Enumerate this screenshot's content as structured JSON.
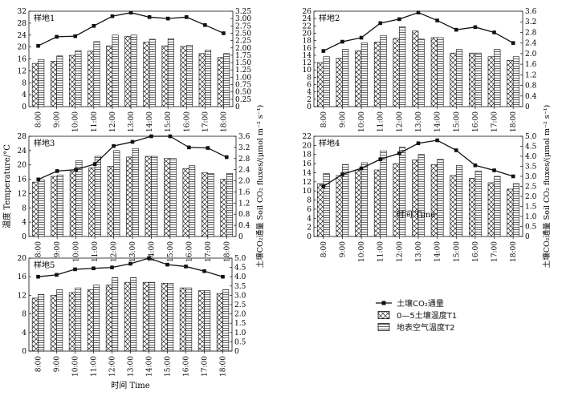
{
  "chart_data": [
    {
      "type": "bar",
      "panel_label": "样地1",
      "categories": [
        "8:00",
        "9:00",
        "10:00",
        "11:00",
        "12:00",
        "13:00",
        "14:00",
        "15:00",
        "16:00",
        "17:00",
        "18:00"
      ],
      "ylim_left": [
        0,
        32
      ],
      "yticks_left": [
        "0",
        "4",
        "8",
        "12",
        "16",
        "20",
        "24",
        "28",
        "32"
      ],
      "ylim_right": [
        0,
        3.25
      ],
      "yticks_right": [
        "0",
        "0.25",
        "0.50",
        "0.75",
        "1.00",
        "1.25",
        "1.50",
        "1.75",
        "2.00",
        "2.25",
        "2.50",
        "2.75",
        "3.00",
        "3.25"
      ],
      "series": [
        {
          "name": "0—5土壤温度T1",
          "axis": "left",
          "values": [
            14.5,
            15.2,
            17.2,
            18.6,
            20.4,
            23.6,
            21.6,
            20.4,
            20.2,
            17.8,
            16.5
          ]
        },
        {
          "name": "地表空气温度T2",
          "axis": "left",
          "values": [
            15.8,
            17.0,
            18.8,
            21.8,
            24.0,
            24.0,
            22.6,
            22.8,
            20.6,
            19.0,
            17.8
          ]
        },
        {
          "name": "土壤CO₂通量",
          "axis": "right",
          "values": [
            2.07,
            2.38,
            2.4,
            2.75,
            3.08,
            3.2,
            3.05,
            3.0,
            3.05,
            2.78,
            2.5
          ]
        }
      ]
    },
    {
      "type": "bar",
      "panel_label": "样地2",
      "categories": [
        "8:00",
        "9:00",
        "10:00",
        "11:00",
        "12:00",
        "13:00",
        "14:00",
        "15:00",
        "16:00",
        "17:00",
        "18:00"
      ],
      "ylim_left": [
        0,
        26
      ],
      "yticks_left": [
        "0",
        "2",
        "4",
        "6",
        "8",
        "10",
        "12",
        "14",
        "16",
        "18",
        "20",
        "22",
        "24",
        "26"
      ],
      "ylim_right": [
        0,
        3.6
      ],
      "yticks_right": [
        "0",
        "0.4",
        "0.8",
        "1.2",
        "1.6",
        "2.0",
        "2.4",
        "2.8",
        "3.2",
        "3.6"
      ],
      "series": [
        {
          "name": "0—5土壤温度T1",
          "axis": "left",
          "values": [
            12.0,
            13.2,
            15.2,
            17.6,
            18.6,
            20.6,
            18.8,
            14.6,
            14.6,
            13.6,
            12.6
          ]
        },
        {
          "name": "地表空气温度T2",
          "axis": "left",
          "values": [
            13.6,
            15.6,
            17.4,
            19.4,
            21.8,
            18.4,
            18.8,
            15.6,
            14.6,
            15.6,
            13.6
          ]
        },
        {
          "name": "土壤CO₂通量",
          "axis": "right",
          "values": [
            2.1,
            2.45,
            2.6,
            3.15,
            3.3,
            3.55,
            3.25,
            2.9,
            3.0,
            2.8,
            2.4
          ]
        }
      ]
    },
    {
      "type": "bar",
      "panel_label": "样地3",
      "categories": [
        "8:00",
        "9:00",
        "10:00",
        "11:00",
        "12:00",
        "13:00",
        "14:00",
        "15:00",
        "16:00",
        "17:00",
        "18:00"
      ],
      "ylim_left": [
        0,
        28
      ],
      "yticks_left": [
        "0",
        "4",
        "8",
        "12",
        "16",
        "20",
        "24",
        "28"
      ],
      "ylim_right": [
        0,
        3.6
      ],
      "yticks_right": [
        "0",
        "0.4",
        "0.8",
        "1.2",
        "1.6",
        "2.0",
        "2.4",
        "2.8",
        "3.2",
        "3.6"
      ],
      "ylabel_left": "温度 Temperature/°C",
      "ylabel_right": "土壤CO₂通量 Soil CO₂ fluxes/(μmol m⁻² s⁻¹)",
      "series": [
        {
          "name": "0—5土壤温度T1",
          "axis": "left",
          "values": [
            15.2,
            16.8,
            18.2,
            19.2,
            19.6,
            22.2,
            22.4,
            21.8,
            19.0,
            17.8,
            16.0
          ]
        },
        {
          "name": "地表空气温度T2",
          "axis": "left",
          "values": [
            15.8,
            17.2,
            21.2,
            22.4,
            24.0,
            24.6,
            22.4,
            21.8,
            19.8,
            17.6,
            17.6
          ]
        },
        {
          "name": "土壤CO₂通量",
          "axis": "right",
          "values": [
            2.05,
            2.35,
            2.4,
            2.6,
            3.25,
            3.4,
            3.6,
            3.6,
            3.2,
            3.18,
            2.85
          ]
        }
      ]
    },
    {
      "type": "bar",
      "panel_label": "样地4",
      "categories": [
        "8:00",
        "9:00",
        "10:00",
        "11:00",
        "12:00",
        "13:00",
        "14:00",
        "15:00",
        "16:00",
        "17:00",
        "18:00"
      ],
      "ylim_left": [
        0,
        22
      ],
      "yticks_left": [
        "0",
        "2",
        "4",
        "6",
        "8",
        "10",
        "12",
        "14",
        "16",
        "18",
        "20",
        "22"
      ],
      "ylim_right": [
        0,
        5.0
      ],
      "yticks_right": [
        "0",
        "0.5",
        "1.0",
        "1.5",
        "2.0",
        "2.5",
        "3.0",
        "3.5",
        "4.0",
        "4.5",
        "5.0"
      ],
      "ylabel_right": "土壤CO₂通量 Soil CO₂ fluxes/(μmol m⁻² s⁻¹)",
      "series": [
        {
          "name": "0—5土壤温度T1",
          "axis": "left",
          "values": [
            11.6,
            13.4,
            14.6,
            14.6,
            16.0,
            16.8,
            15.8,
            13.4,
            12.8,
            11.8,
            10.4
          ]
        },
        {
          "name": "地表空气温度T2",
          "axis": "left",
          "values": [
            13.8,
            15.8,
            16.2,
            18.8,
            19.6,
            18.0,
            17.0,
            15.6,
            14.4,
            13.2,
            11.6
          ]
        },
        {
          "name": "土壤CO₂通量",
          "axis": "right",
          "values": [
            2.5,
            3.1,
            3.4,
            3.85,
            4.15,
            4.65,
            4.8,
            4.3,
            3.55,
            3.3,
            3.0
          ]
        }
      ]
    },
    {
      "type": "bar",
      "panel_label": "样地5",
      "categories": [
        "8:00",
        "9:00",
        "10:00",
        "11:00",
        "12:00",
        "13:00",
        "14:00",
        "15:00",
        "16:00",
        "17:00",
        "18:00"
      ],
      "ylim_left": [
        0,
        20
      ],
      "yticks_left": [
        "0",
        "4",
        "8",
        "12",
        "16",
        "20"
      ],
      "ylim_right": [
        0,
        5.0
      ],
      "yticks_right": [
        "0",
        "0.5",
        "1.0",
        "1.5",
        "2.0",
        "2.5",
        "3.0",
        "3.5",
        "4.0",
        "4.5",
        "5.0"
      ],
      "xlabel": "时间 Time",
      "series": [
        {
          "name": "0—5土壤温度T1",
          "axis": "left",
          "values": [
            11.4,
            12.0,
            12.6,
            13.2,
            14.2,
            14.8,
            14.8,
            14.6,
            13.6,
            13.0,
            12.4
          ]
        },
        {
          "name": "地表空气温度T2",
          "axis": "left",
          "values": [
            12.2,
            13.2,
            13.6,
            14.2,
            15.8,
            15.8,
            14.8,
            14.6,
            13.6,
            13.0,
            13.2
          ]
        },
        {
          "name": "土壤CO₂通量",
          "axis": "right",
          "values": [
            4.0,
            4.1,
            4.4,
            4.45,
            4.5,
            4.7,
            5.0,
            4.65,
            4.55,
            4.3,
            4.0
          ]
        }
      ]
    }
  ],
  "shared_xlabel": "时间 Time",
  "legend": {
    "items": [
      {
        "label": "土壤CO₂通量",
        "symbol": "line-marker"
      },
      {
        "label": "0—5土壤温度T1",
        "symbol": "crosshatch-bar"
      },
      {
        "label": "地表空气温度T2",
        "symbol": "horizontal-hatch-bar"
      }
    ]
  },
  "colors": {
    "ink": "#111111",
    "background": "#ffffff"
  }
}
